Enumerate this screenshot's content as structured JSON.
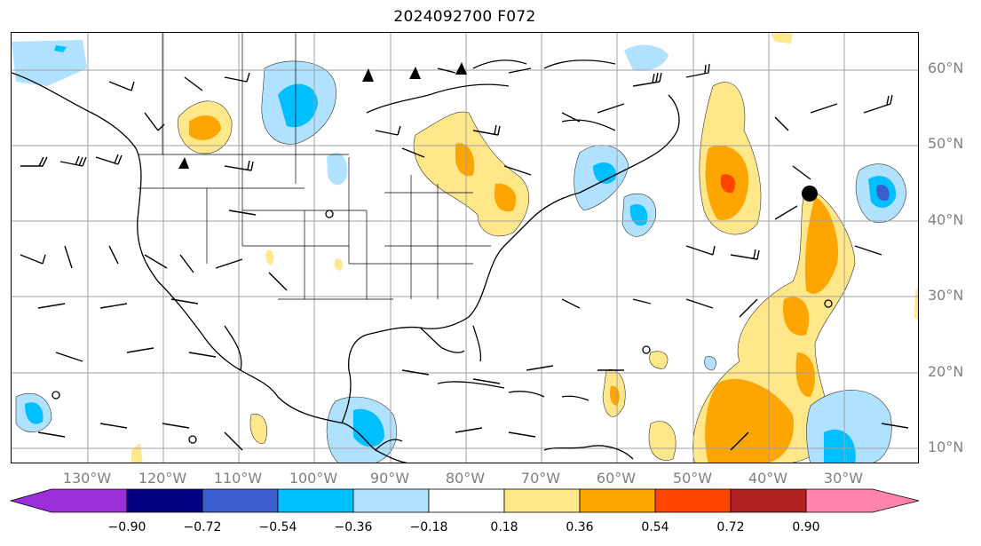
{
  "title": "2024092700 F072",
  "lat_labels": [
    "60°N",
    "50°N",
    "40°N",
    "30°N",
    "20°N",
    "10°N"
  ],
  "lon_labels": [
    "130°W",
    "120°W",
    "110°W",
    "100°W",
    "90°W",
    "80°W",
    "70°W",
    "60°W",
    "50°W",
    "40°W",
    "30°W"
  ],
  "colorbar": {
    "ticks": [
      "−0.90",
      "−0.72",
      "−0.54",
      "−0.36",
      "−0.18",
      "0.18",
      "0.36",
      "0.54",
      "0.72",
      "0.90"
    ],
    "colors": [
      "#9b30d9",
      "#000080",
      "#3a5fcd",
      "#00bfff",
      "#b0e2ff",
      "#ffffff",
      "#ffe78a",
      "#ffa500",
      "#ff4500",
      "#b22222",
      "#ff82ab"
    ]
  },
  "legend_marker": "filled circle near 36°W 44°N"
}
